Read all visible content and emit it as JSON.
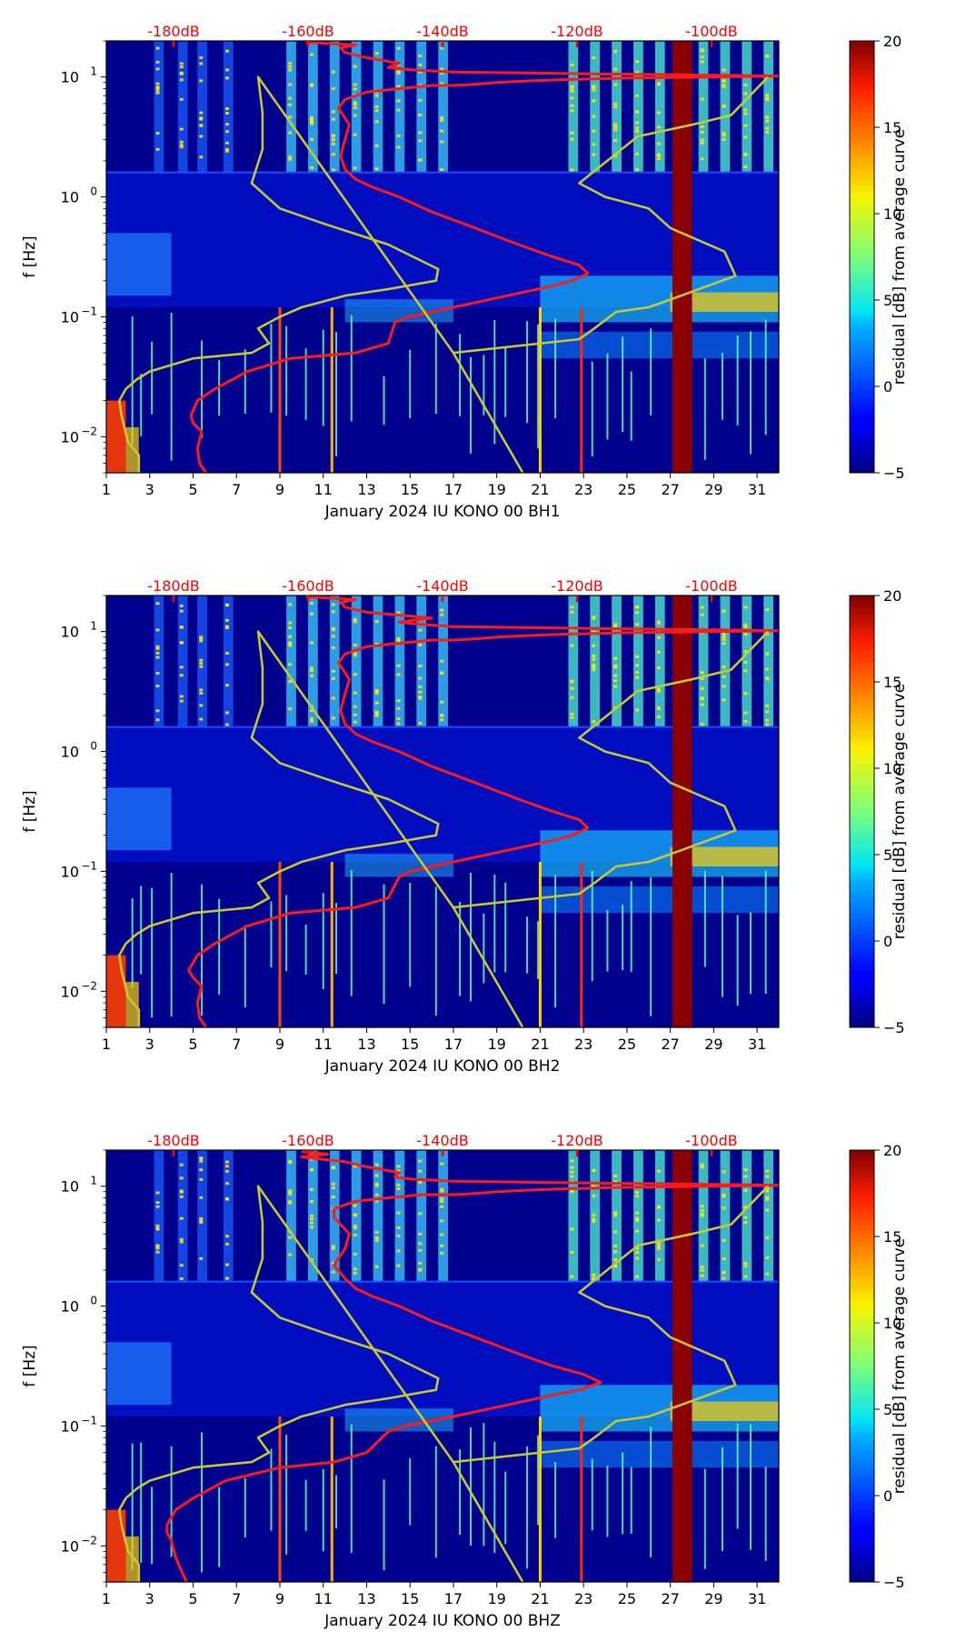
{
  "chart_data": [
    {
      "type": "heatmap",
      "title": "",
      "xlabel": "January 2024 IU KONO 00 BH1",
      "ylabel": "f [Hz]",
      "xlim": [
        1,
        32
      ],
      "ylim": [
        0.005,
        20
      ],
      "yscale": "log",
      "x_ticks": [
        "1",
        "3",
        "5",
        "7",
        "9",
        "11",
        "13",
        "15",
        "17",
        "19",
        "21",
        "23",
        "25",
        "27",
        "29",
        "31"
      ],
      "x_tick_values": [
        1,
        3,
        5,
        7,
        9,
        11,
        13,
        15,
        17,
        19,
        21,
        23,
        25,
        27,
        29,
        31
      ],
      "y_tick_values": [
        0.01,
        0.1,
        1,
        10
      ],
      "y_ticks": [
        {
          "base": "10",
          "exp": "−2"
        },
        {
          "base": "10",
          "exp": "−1"
        },
        {
          "base": "10",
          "exp": "0"
        },
        {
          "base": "10",
          "exp": "1"
        }
      ],
      "top_axis": {
        "labels": [
          "-180dB",
          "-160dB",
          "-140dB",
          "-120dB",
          "-100dB"
        ],
        "positions_day": [
          4.1,
          10.3,
          16.5,
          22.7,
          28.9
        ]
      },
      "colorbar": {
        "label": "residual [dB] from average curve",
        "range": [
          -5,
          20
        ],
        "ticks": [
          "−5",
          "0",
          "5",
          "10",
          "15",
          "20"
        ],
        "tick_values": [
          -5,
          0,
          5,
          10,
          15,
          20
        ],
        "colormap": "jet"
      },
      "gap_band_days": [
        27.1,
        28.0
      ],
      "series": [
        {
          "name": "red PSD curve",
          "color": "#ff1a1a",
          "day_x": [
            5.6,
            5.3,
            5.2,
            5.4,
            5.0,
            4.9,
            5.2,
            6.0,
            7.5,
            9.5,
            12.5,
            14.0,
            14.3,
            15.0,
            17.0,
            19.5,
            21.5,
            22.5,
            23.2,
            22.8,
            21.5,
            20.0,
            18.0,
            16.0,
            14.5,
            13.3,
            12.5,
            12.0,
            11.8,
            12.0,
            12.2,
            11.7,
            12.0,
            13.0,
            14.5,
            16.0,
            17.0,
            18.0,
            19.0,
            20.0,
            22.0,
            25.0,
            29.0,
            32.0,
            30.0,
            24.0,
            17.0,
            15.0,
            14.0,
            14.5,
            13.0,
            12.0,
            11.8,
            12.5,
            10.2
          ],
          "freq_hz": [
            0.005,
            0.006,
            0.008,
            0.011,
            0.013,
            0.015,
            0.02,
            0.025,
            0.035,
            0.045,
            0.05,
            0.06,
            0.09,
            0.1,
            0.12,
            0.15,
            0.18,
            0.2,
            0.23,
            0.27,
            0.32,
            0.4,
            0.55,
            0.75,
            1.0,
            1.2,
            1.4,
            1.7,
            2.2,
            3.0,
            4.0,
            5.5,
            6.5,
            7.5,
            8.0,
            8.5,
            8.5,
            8.7,
            9.0,
            9.2,
            9.5,
            9.8,
            10.0,
            10.2,
            10.3,
            10.6,
            11.0,
            11.5,
            12.0,
            13.0,
            14.5,
            16.0,
            17.5,
            18.5,
            19.5
          ]
        },
        {
          "name": "yellow model curve",
          "color": "#c8c830",
          "day_x": [
            2.5,
            2.5,
            2.0,
            1.7,
            1.6,
            1.9,
            2.4,
            3.0,
            5.0,
            7.7,
            8.5,
            8.0,
            9.0,
            10.0,
            12.0,
            14.0,
            16.2,
            16.3,
            14.0,
            11.0,
            9.0,
            7.7,
            8.2,
            8.2,
            8.0,
            17.0,
            20.2,
            17.0,
            22.8,
            23.5,
            24.5,
            26.0,
            27.5,
            30.0,
            29.5,
            27.0,
            26.0,
            24.0,
            22.8,
            25.5,
            28.0,
            29.8,
            31.5
          ],
          "freq_hz": [
            0.005,
            0.007,
            0.009,
            0.015,
            0.02,
            0.025,
            0.03,
            0.035,
            0.045,
            0.05,
            0.06,
            0.08,
            0.1,
            0.12,
            0.15,
            0.17,
            0.2,
            0.25,
            0.4,
            0.6,
            0.8,
            1.3,
            2.5,
            5.0,
            10.0,
            0.05,
            0.005,
            0.05,
            0.065,
            0.08,
            0.11,
            0.12,
            0.15,
            0.22,
            0.35,
            0.55,
            0.8,
            1.0,
            1.3,
            3.2,
            4.0,
            4.8,
            10.0
          ]
        }
      ]
    },
    {
      "type": "heatmap",
      "title": "",
      "xlabel": "January 2024 IU KONO 00 BH2",
      "ylabel": "f [Hz]",
      "xlim": [
        1,
        32
      ],
      "ylim": [
        0.005,
        20
      ],
      "yscale": "log",
      "x_ticks": [
        "1",
        "3",
        "5",
        "7",
        "9",
        "11",
        "13",
        "15",
        "17",
        "19",
        "21",
        "23",
        "25",
        "27",
        "29",
        "31"
      ],
      "x_tick_values": [
        1,
        3,
        5,
        7,
        9,
        11,
        13,
        15,
        17,
        19,
        21,
        23,
        25,
        27,
        29,
        31
      ],
      "y_tick_values": [
        0.01,
        0.1,
        1,
        10
      ],
      "y_ticks": [
        {
          "base": "10",
          "exp": "−2"
        },
        {
          "base": "10",
          "exp": "−1"
        },
        {
          "base": "10",
          "exp": "0"
        },
        {
          "base": "10",
          "exp": "1"
        }
      ],
      "top_axis": {
        "labels": [
          "-180dB",
          "-160dB",
          "-140dB",
          "-120dB",
          "-100dB"
        ],
        "positions_day": [
          4.1,
          10.3,
          16.5,
          22.7,
          28.9
        ]
      },
      "colorbar": {
        "label": "residual [dB] from average curve",
        "range": [
          -5,
          20
        ],
        "ticks": [
          "−5",
          "0",
          "5",
          "10",
          "15",
          "20"
        ],
        "tick_values": [
          -5,
          0,
          5,
          10,
          15,
          20
        ],
        "colormap": "jet"
      },
      "gap_band_days": [
        27.1,
        28.0
      ],
      "series": [
        {
          "name": "red PSD curve",
          "color": "#ff1a1a",
          "day_x": [
            5.6,
            5.3,
            5.2,
            5.4,
            5.0,
            4.8,
            5.2,
            6.0,
            7.5,
            9.5,
            12.5,
            14.0,
            14.5,
            15.0,
            17.0,
            19.5,
            21.5,
            22.5,
            23.2,
            22.8,
            21.5,
            20.0,
            18.0,
            16.0,
            14.5,
            13.3,
            12.5,
            12.0,
            11.8,
            12.0,
            12.2,
            11.7,
            12.0,
            13.0,
            14.5,
            16.0,
            17.0,
            18.0,
            19.0,
            20.0,
            22.0,
            25.0,
            29.0,
            32.0,
            30.0,
            24.0,
            17.0,
            15.5,
            14.5,
            16.0,
            13.0,
            12.0,
            11.8,
            12.5,
            10.2
          ],
          "freq_hz": [
            0.005,
            0.006,
            0.008,
            0.011,
            0.013,
            0.015,
            0.02,
            0.025,
            0.035,
            0.045,
            0.05,
            0.06,
            0.09,
            0.1,
            0.12,
            0.15,
            0.18,
            0.2,
            0.23,
            0.27,
            0.32,
            0.4,
            0.55,
            0.75,
            1.0,
            1.2,
            1.4,
            1.7,
            2.2,
            3.0,
            4.0,
            5.5,
            6.5,
            7.5,
            8.0,
            8.5,
            8.5,
            8.7,
            9.0,
            9.2,
            9.5,
            9.8,
            10.0,
            10.2,
            10.3,
            10.6,
            11.0,
            11.5,
            12.0,
            13.0,
            14.5,
            16.0,
            17.5,
            18.5,
            19.5
          ]
        },
        {
          "name": "yellow model curve",
          "color": "#c8c830",
          "day_x": [
            2.5,
            2.5,
            2.0,
            1.7,
            1.6,
            1.9,
            2.4,
            3.0,
            5.0,
            7.7,
            8.5,
            8.0,
            9.0,
            10.0,
            12.0,
            14.0,
            16.2,
            16.3,
            14.0,
            11.0,
            9.0,
            7.7,
            8.2,
            8.2,
            8.0,
            17.0,
            20.2,
            17.0,
            22.8,
            23.5,
            24.5,
            26.0,
            27.5,
            30.0,
            29.5,
            27.0,
            26.0,
            24.0,
            22.8,
            25.5,
            28.0,
            29.8,
            31.5
          ],
          "freq_hz": [
            0.005,
            0.007,
            0.009,
            0.015,
            0.02,
            0.025,
            0.03,
            0.035,
            0.045,
            0.05,
            0.06,
            0.08,
            0.1,
            0.12,
            0.15,
            0.17,
            0.2,
            0.25,
            0.4,
            0.6,
            0.8,
            1.3,
            2.5,
            5.0,
            10.0,
            0.05,
            0.005,
            0.05,
            0.065,
            0.08,
            0.11,
            0.12,
            0.15,
            0.22,
            0.35,
            0.55,
            0.8,
            1.0,
            1.3,
            3.2,
            4.0,
            4.8,
            10.0
          ]
        }
      ]
    },
    {
      "type": "heatmap",
      "title": "",
      "xlabel": "January 2024 IU KONO 00 BHZ",
      "ylabel": "f [Hz]",
      "xlim": [
        1,
        32
      ],
      "ylim": [
        0.005,
        20
      ],
      "yscale": "log",
      "x_ticks": [
        "1",
        "3",
        "5",
        "7",
        "9",
        "11",
        "13",
        "15",
        "17",
        "19",
        "21",
        "23",
        "25",
        "27",
        "29",
        "31"
      ],
      "x_tick_values": [
        1,
        3,
        5,
        7,
        9,
        11,
        13,
        15,
        17,
        19,
        21,
        23,
        25,
        27,
        29,
        31
      ],
      "y_tick_values": [
        0.01,
        0.1,
        1,
        10
      ],
      "y_ticks": [
        {
          "base": "10",
          "exp": "−2"
        },
        {
          "base": "10",
          "exp": "−1"
        },
        {
          "base": "10",
          "exp": "0"
        },
        {
          "base": "10",
          "exp": "1"
        }
      ],
      "top_axis": {
        "labels": [
          "-180dB",
          "-160dB",
          "-140dB",
          "-120dB",
          "-100dB"
        ],
        "positions_day": [
          4.1,
          10.3,
          16.5,
          22.7,
          28.9
        ]
      },
      "colorbar": {
        "label": "residual [dB] from average curve",
        "range": [
          -5,
          20
        ],
        "ticks": [
          "−5",
          "0",
          "5",
          "10",
          "15",
          "20"
        ],
        "tick_values": [
          -5,
          0,
          5,
          10,
          15,
          20
        ],
        "colormap": "jet"
      },
      "gap_band_days": [
        27.1,
        28.0
      ],
      "series": [
        {
          "name": "red PSD curve",
          "color": "#ff1a1a",
          "day_x": [
            4.7,
            4.5,
            4.2,
            4.0,
            3.8,
            3.8,
            4.2,
            5.0,
            6.5,
            9.0,
            11.5,
            13.0,
            14.0,
            14.8,
            17.0,
            19.5,
            21.5,
            22.8,
            23.8,
            23.0,
            21.5,
            20.0,
            18.0,
            16.0,
            14.5,
            13.3,
            12.5,
            12.0,
            11.5,
            12.0,
            12.2,
            11.5,
            11.5,
            12.5,
            14.0,
            15.5,
            17.0,
            18.0,
            19.0,
            20.0,
            22.0,
            25.0,
            29.0,
            32.0,
            30.0,
            24.0,
            17.0,
            15.0,
            14.3,
            14.5,
            13.0,
            12.0,
            10.0,
            11.2,
            10.0
          ],
          "freq_hz": [
            0.005,
            0.006,
            0.008,
            0.011,
            0.013,
            0.015,
            0.02,
            0.025,
            0.035,
            0.045,
            0.05,
            0.06,
            0.09,
            0.1,
            0.12,
            0.15,
            0.18,
            0.2,
            0.23,
            0.27,
            0.32,
            0.4,
            0.55,
            0.75,
            1.0,
            1.2,
            1.4,
            1.7,
            2.2,
            3.0,
            4.0,
            5.5,
            6.5,
            7.5,
            8.0,
            8.5,
            8.5,
            8.7,
            9.0,
            9.2,
            9.5,
            9.8,
            10.0,
            10.2,
            10.3,
            10.6,
            11.0,
            11.5,
            12.0,
            13.0,
            14.5,
            16.0,
            17.5,
            18.5,
            19.5
          ]
        },
        {
          "name": "yellow model curve",
          "color": "#c8c830",
          "day_x": [
            2.5,
            2.5,
            2.0,
            1.7,
            1.6,
            1.9,
            2.4,
            3.0,
            5.0,
            7.7,
            8.5,
            8.0,
            9.0,
            10.0,
            12.0,
            14.0,
            16.2,
            16.3,
            14.0,
            11.0,
            9.0,
            7.7,
            8.2,
            8.2,
            8.0,
            17.0,
            20.2,
            17.0,
            22.8,
            23.5,
            24.5,
            26.0,
            27.5,
            30.0,
            29.5,
            27.0,
            26.0,
            24.0,
            22.8,
            25.5,
            28.0,
            29.8,
            31.5
          ],
          "freq_hz": [
            0.005,
            0.007,
            0.009,
            0.015,
            0.02,
            0.025,
            0.03,
            0.035,
            0.045,
            0.05,
            0.06,
            0.08,
            0.1,
            0.12,
            0.15,
            0.17,
            0.2,
            0.25,
            0.4,
            0.6,
            0.8,
            1.3,
            2.5,
            5.0,
            10.0,
            0.05,
            0.005,
            0.05,
            0.065,
            0.08,
            0.11,
            0.12,
            0.15,
            0.22,
            0.35,
            0.55,
            0.8,
            1.0,
            1.3,
            3.2,
            4.0,
            4.8,
            10.0
          ]
        }
      ]
    }
  ]
}
